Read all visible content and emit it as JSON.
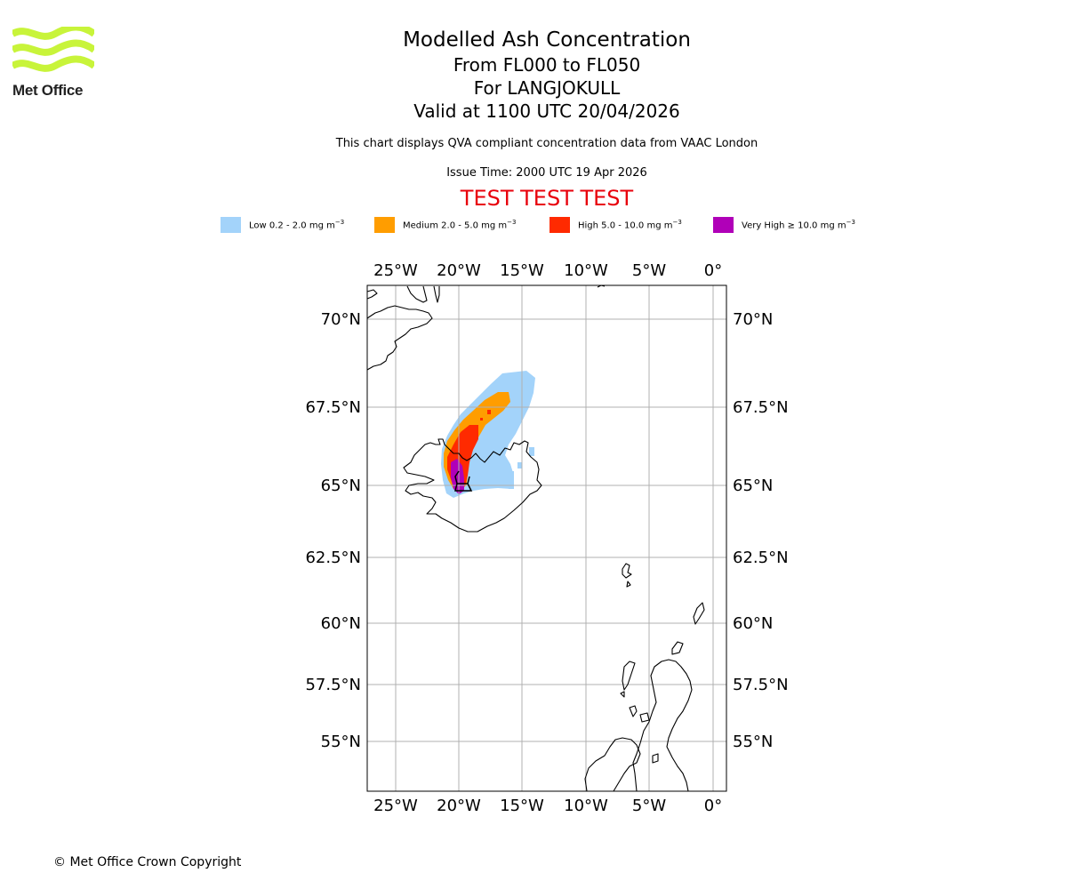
{
  "logo": {
    "text": "Met Office",
    "color": "#c8f43a"
  },
  "title": {
    "main": "Modelled Ash Concentration",
    "levels": "From FL000 to FL050",
    "source": "For LANGJOKULL",
    "valid": "Valid at 1100 UTC 20/04/2026"
  },
  "info": {
    "compliance": "This chart displays QVA compliant concentration data from VAAC London",
    "issue_time": "Issue Time: 2000 UTC 19 Apr 2026",
    "test_banner": "TEST TEST TEST"
  },
  "legend": [
    {
      "label": "Low 0.2 - 2.0 mg m",
      "unit_exp": "−3",
      "color": "#a3d3fa"
    },
    {
      "label": "Medium 2.0 - 5.0 mg m",
      "unit_exp": "−3",
      "color": "#ff9d00"
    },
    {
      "label": "High 5.0 - 10.0 mg m",
      "unit_exp": "−3",
      "color": "#ff2a00"
    },
    {
      "label": "Very High ≥ 10.0 mg m",
      "unit_exp": "−3",
      "color": "#b000b8"
    }
  ],
  "map": {
    "lon_ticks": [
      "25°W",
      "20°W",
      "15°W",
      "10°W",
      "5°W",
      "0°"
    ],
    "lat_ticks": [
      "70°N",
      "67.5°N",
      "65°N",
      "62.5°N",
      "60°N",
      "57.5°N",
      "55°N"
    ],
    "grid_color": "#b0b0b0"
  },
  "footer": {
    "copyright": "© Met Office Crown Copyright"
  }
}
